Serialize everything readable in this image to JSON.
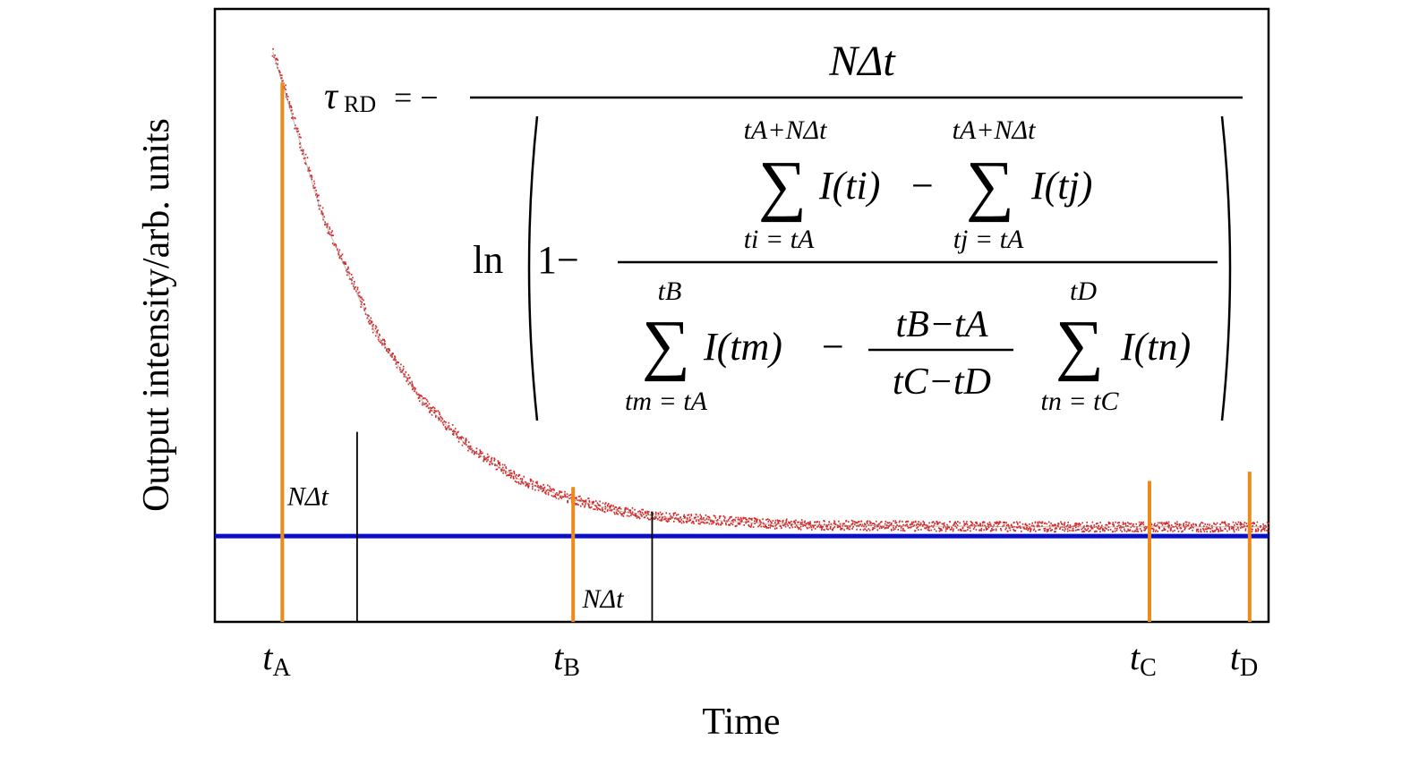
{
  "chart_data": {
    "type": "line",
    "xlabel": "Time",
    "ylabel": "Output intensity/arb. units",
    "grid": false,
    "legend": "none",
    "ylim": [
      0,
      1
    ],
    "series": [
      {
        "kind": "noisy-exponential-decay",
        "color": "#d42a2a",
        "x": [
          0.0,
          0.05,
          0.1,
          0.15,
          0.2,
          0.25,
          0.3,
          0.35,
          0.4,
          0.45,
          0.5,
          0.55,
          0.6,
          0.65,
          0.7,
          0.75,
          0.8,
          0.85,
          0.9,
          0.95,
          1.0
        ],
        "values": [
          0.93,
          0.66,
          0.48,
          0.36,
          0.28,
          0.23,
          0.2,
          0.18,
          0.17,
          0.165,
          0.16,
          0.158,
          0.157,
          0.156,
          0.156,
          0.155,
          0.155,
          0.155,
          0.155,
          0.155,
          0.155
        ]
      }
    ],
    "threshold": {
      "value": 0.14,
      "color": "#0b10c8"
    },
    "markers": [
      {
        "id": "tA",
        "main": "t",
        "sub": "A",
        "x": 0.064,
        "top": 0.88,
        "color": "#ee8a1a"
      },
      {
        "id": "tB",
        "main": "t",
        "sub": "B",
        "x": 0.34,
        "top": 0.22,
        "color": "#ee8a1a"
      },
      {
        "id": "tC",
        "main": "t",
        "sub": "C",
        "x": 0.887,
        "top": 0.23,
        "color": "#ee8a1a"
      },
      {
        "id": "tD",
        "main": "t",
        "sub": "D",
        "x": 0.982,
        "top": 0.245,
        "color": "#ee8a1a"
      }
    ],
    "windows": [
      {
        "id": "window-a",
        "x": 0.135,
        "top": 0.31,
        "label": "NΔt",
        "label_pos": "above"
      },
      {
        "id": "window-b",
        "x": 0.415,
        "top": 0.18,
        "label": "NΔt",
        "label_pos": "below"
      }
    ],
    "formula": {
      "lhs_symbol": "τ",
      "lhs_sub": "RD",
      "equals": "= −",
      "numerator": "NΔt",
      "ln": "ln",
      "one_minus": "1−",
      "top_sum1": {
        "upper": "tA+NΔt",
        "body": "I(ti)",
        "lower": "ti = tA"
      },
      "top_minus": "−",
      "top_sum2": {
        "upper": "tA+NΔt",
        "body": "I(tj)",
        "lower": "tj = tA"
      },
      "bottom_sum1": {
        "upper": "tB",
        "body": "I(tm)",
        "lower": "tm = tA"
      },
      "bottom_minus": "−",
      "frac_num": "tB−tA",
      "frac_den": "tC−tD",
      "bottom_sum2": {
        "upper": "tD",
        "body": "I(tn)",
        "lower": "tn = tC"
      }
    }
  }
}
